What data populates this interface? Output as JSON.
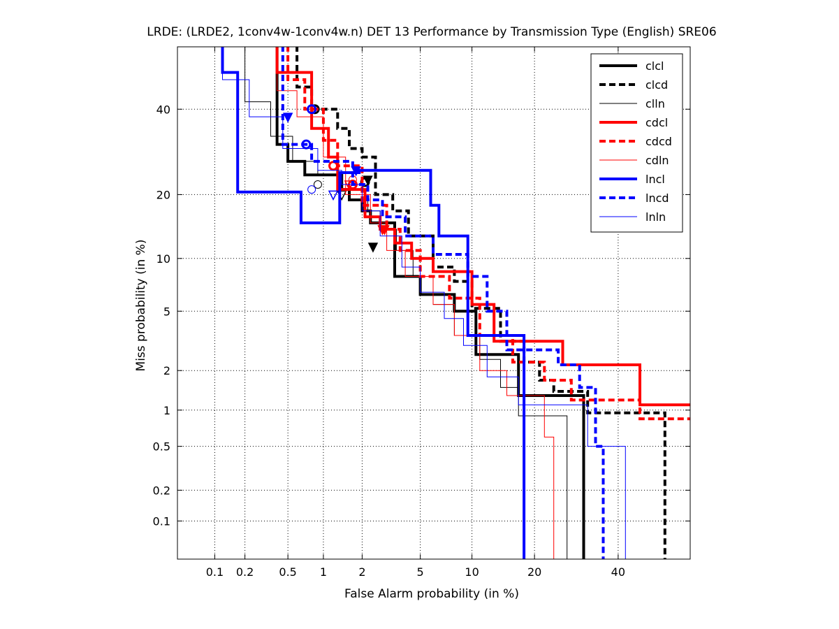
{
  "chart_data": {
    "type": "line",
    "title": "LRDE: (LRDE2, 1conv4w-1conv4w.n) DET 13 Performance by Transmission Type (English) SRE06",
    "xlabel": "False Alarm probability (in %)",
    "ylabel": "Miss probability (in %)",
    "x_scale": "normal-deviate",
    "y_scale": "normal-deviate",
    "xlim": [
      0.04,
      60
    ],
    "ylim": [
      0.04,
      57
    ],
    "grid": true,
    "legend_position": "top-right",
    "x_ticks": [
      {
        "value": 0.1,
        "label": "0.1"
      },
      {
        "value": 0.2,
        "label": "0.2"
      },
      {
        "value": 0.5,
        "label": "0.5"
      },
      {
        "value": 1,
        "label": "1"
      },
      {
        "value": 2,
        "label": "2"
      },
      {
        "value": 5,
        "label": "5"
      },
      {
        "value": 10,
        "label": "10"
      },
      {
        "value": 20,
        "label": "20"
      },
      {
        "value": 40,
        "label": "40"
      }
    ],
    "y_ticks": [
      {
        "value": 0.1,
        "label": "0.1"
      },
      {
        "value": 0.2,
        "label": "0.2"
      },
      {
        "value": 0.5,
        "label": "0.5"
      },
      {
        "value": 1,
        "label": "1"
      },
      {
        "value": 2,
        "label": "2"
      },
      {
        "value": 5,
        "label": "5"
      },
      {
        "value": 10,
        "label": "10"
      },
      {
        "value": 20,
        "label": "20"
      },
      {
        "value": 40,
        "label": "40"
      }
    ],
    "series": [
      {
        "name": "clcl",
        "color": "#000000",
        "style": "solid",
        "weight": "thick",
        "points": [
          [
            0.4,
            60
          ],
          [
            0.4,
            31
          ],
          [
            0.5,
            31
          ],
          [
            0.5,
            27
          ],
          [
            0.7,
            27
          ],
          [
            0.7,
            24
          ],
          [
            1.4,
            24
          ],
          [
            1.4,
            21
          ],
          [
            1.6,
            21
          ],
          [
            1.6,
            19
          ],
          [
            2.0,
            19
          ],
          [
            2.0,
            17
          ],
          [
            2.3,
            17
          ],
          [
            2.3,
            15
          ],
          [
            3.4,
            15
          ],
          [
            3.4,
            8
          ],
          [
            5.0,
            8
          ],
          [
            5.0,
            6.3
          ],
          [
            8.0,
            6.3
          ],
          [
            8.0,
            5.0
          ],
          [
            10.5,
            5.0
          ],
          [
            10.5,
            2.6
          ],
          [
            17,
            2.6
          ],
          [
            17,
            1.3
          ],
          [
            31,
            1.3
          ],
          [
            31,
            0.04
          ]
        ],
        "dcf_marker": {
          "x": 2.1,
          "y": 22.5,
          "label_shape": "circle"
        },
        "min_marker": {
          "x": 2.4,
          "y": 11.5,
          "label_shape": "triangle"
        }
      },
      {
        "name": "clcd",
        "color": "#000000",
        "style": "dashed",
        "weight": "thick",
        "points": [
          [
            0.6,
            60
          ],
          [
            0.6,
            46
          ],
          [
            0.8,
            46
          ],
          [
            0.8,
            40
          ],
          [
            1.3,
            40
          ],
          [
            1.3,
            35
          ],
          [
            1.6,
            35
          ],
          [
            1.6,
            30
          ],
          [
            2.0,
            30
          ],
          [
            2.0,
            28
          ],
          [
            2.5,
            28
          ],
          [
            2.5,
            20
          ],
          [
            3.3,
            20
          ],
          [
            3.3,
            17
          ],
          [
            4.2,
            17
          ],
          [
            4.2,
            13
          ],
          [
            6.0,
            13
          ],
          [
            6.0,
            9
          ],
          [
            8.0,
            9
          ],
          [
            8.0,
            7.5
          ],
          [
            10,
            7.5
          ],
          [
            10,
            5.2
          ],
          [
            14,
            5.2
          ],
          [
            14,
            3.2
          ],
          [
            18,
            3.2
          ],
          [
            18,
            2.3
          ],
          [
            21,
            2.3
          ],
          [
            21,
            1.7
          ],
          [
            24,
            1.7
          ],
          [
            24,
            1.4
          ],
          [
            32,
            1.4
          ],
          [
            32,
            0.95
          ],
          [
            53,
            0.95
          ],
          [
            53,
            0.04
          ]
        ],
        "dcf_marker": {
          "x": 0.85,
          "y": 40,
          "label_shape": "circle"
        },
        "min_marker": {
          "x": 2.2,
          "y": 23,
          "label_shape": "triangle"
        }
      },
      {
        "name": "clln",
        "color": "#000000",
        "style": "solid",
        "weight": "thin",
        "points": [
          [
            0.2,
            60
          ],
          [
            0.2,
            42
          ],
          [
            0.35,
            42
          ],
          [
            0.35,
            33
          ],
          [
            0.55,
            33
          ],
          [
            0.55,
            27
          ],
          [
            0.9,
            27
          ],
          [
            0.9,
            24
          ],
          [
            1.3,
            24
          ],
          [
            1.3,
            21
          ],
          [
            1.6,
            21
          ],
          [
            1.6,
            19
          ],
          [
            2.2,
            19
          ],
          [
            2.2,
            17
          ],
          [
            2.7,
            17
          ],
          [
            2.7,
            14
          ],
          [
            3.5,
            14
          ],
          [
            3.5,
            11
          ],
          [
            4.5,
            11
          ],
          [
            4.5,
            8
          ],
          [
            6.0,
            8
          ],
          [
            6.0,
            5.5
          ],
          [
            8.0,
            5.5
          ],
          [
            8.0,
            3.5
          ],
          [
            11,
            3.5
          ],
          [
            11,
            2.4
          ],
          [
            14,
            2.4
          ],
          [
            14,
            1.5
          ],
          [
            17,
            1.5
          ],
          [
            17,
            0.9
          ],
          [
            27,
            0.9
          ],
          [
            27,
            0.04
          ]
        ],
        "dcf_marker": {
          "x": 0.9,
          "y": 22,
          "label_shape": "circle"
        },
        "min_marker": {
          "x": 1.4,
          "y": 20,
          "label_shape": "triangle"
        }
      },
      {
        "name": "cdcl",
        "color": "#ff0000",
        "style": "solid",
        "weight": "thick",
        "points": [
          [
            0.4,
            60
          ],
          [
            0.4,
            50
          ],
          [
            0.8,
            50
          ],
          [
            0.8,
            35
          ],
          [
            1.1,
            35
          ],
          [
            1.1,
            28
          ],
          [
            1.3,
            28
          ],
          [
            1.3,
            21
          ],
          [
            2.1,
            21
          ],
          [
            2.1,
            16
          ],
          [
            2.7,
            16
          ],
          [
            2.7,
            14
          ],
          [
            3.4,
            14
          ],
          [
            3.4,
            12
          ],
          [
            4.4,
            12
          ],
          [
            4.4,
            10
          ],
          [
            6.0,
            10
          ],
          [
            6.0,
            8.5
          ],
          [
            10,
            8.5
          ],
          [
            10,
            5.5
          ],
          [
            13,
            5.5
          ],
          [
            13,
            3.2
          ],
          [
            26,
            3.2
          ],
          [
            26,
            2.2
          ],
          [
            46,
            2.2
          ],
          [
            46,
            1.1
          ],
          [
            60,
            1.1
          ]
        ],
        "dcf_marker": {
          "x": 1.7,
          "y": 22,
          "label_shape": "circle"
        },
        "min_marker": {
          "x": 2.9,
          "y": 14,
          "label_shape": "triangle"
        }
      },
      {
        "name": "cdcd",
        "color": "#ff0000",
        "style": "dashed",
        "weight": "thick",
        "points": [
          [
            0.5,
            60
          ],
          [
            0.5,
            48
          ],
          [
            0.7,
            48
          ],
          [
            0.7,
            40
          ],
          [
            1.0,
            40
          ],
          [
            1.0,
            32
          ],
          [
            1.3,
            32
          ],
          [
            1.3,
            26
          ],
          [
            2.0,
            26
          ],
          [
            2.0,
            18
          ],
          [
            3.0,
            18
          ],
          [
            3.0,
            14
          ],
          [
            3.7,
            14
          ],
          [
            3.7,
            11
          ],
          [
            5.0,
            11
          ],
          [
            5.0,
            8
          ],
          [
            7.5,
            8
          ],
          [
            7.5,
            6
          ],
          [
            11,
            6
          ],
          [
            11,
            3.5
          ],
          [
            16,
            3.5
          ],
          [
            16,
            2.3
          ],
          [
            22,
            2.3
          ],
          [
            22,
            1.7
          ],
          [
            28,
            1.7
          ],
          [
            28,
            1.2
          ],
          [
            46,
            1.2
          ],
          [
            46,
            0.85
          ],
          [
            60,
            0.85
          ]
        ],
        "dcf_marker": {
          "x": 1.2,
          "y": 26,
          "label_shape": "circle"
        },
        "min_marker": {
          "x": 2.8,
          "y": 14,
          "label_shape": "triangle"
        }
      },
      {
        "name": "cdln",
        "color": "#ff0000",
        "style": "solid",
        "weight": "thin",
        "points": [
          [
            0.4,
            60
          ],
          [
            0.4,
            45
          ],
          [
            0.6,
            45
          ],
          [
            0.6,
            38
          ],
          [
            1.0,
            38
          ],
          [
            1.0,
            28
          ],
          [
            1.5,
            28
          ],
          [
            1.5,
            20
          ],
          [
            2.3,
            20
          ],
          [
            2.3,
            15
          ],
          [
            3.0,
            15
          ],
          [
            3.0,
            11
          ],
          [
            4.0,
            11
          ],
          [
            4.0,
            8
          ],
          [
            6.0,
            8
          ],
          [
            6.0,
            5.5
          ],
          [
            8.0,
            5.5
          ],
          [
            8.0,
            3.5
          ],
          [
            11,
            3.5
          ],
          [
            11,
            2.0
          ],
          [
            15,
            2.0
          ],
          [
            15,
            1.3
          ],
          [
            22,
            1.3
          ],
          [
            22,
            0.6
          ],
          [
            24,
            0.6
          ],
          [
            24,
            0.04
          ]
        ],
        "dcf_marker": {
          "x": 1.7,
          "y": 23,
          "label_shape": "circle"
        },
        "min_marker": {
          "x": 1.6,
          "y": 22,
          "label_shape": "triangle"
        }
      },
      {
        "name": "lncl",
        "color": "#0000ff",
        "style": "solid",
        "weight": "thick",
        "points": [
          [
            0.12,
            60
          ],
          [
            0.12,
            50
          ],
          [
            0.17,
            50
          ],
          [
            0.17,
            20.5
          ],
          [
            0.65,
            20.5
          ],
          [
            0.65,
            15
          ],
          [
            1.35,
            15
          ],
          [
            1.35,
            24.5
          ],
          [
            1.9,
            24.5
          ],
          [
            1.9,
            25
          ],
          [
            5.8,
            25
          ],
          [
            5.8,
            18
          ],
          [
            6.5,
            18
          ],
          [
            6.5,
            13
          ],
          [
            9.5,
            13
          ],
          [
            9.5,
            3.5
          ],
          [
            18,
            3.5
          ],
          [
            18,
            0.04
          ]
        ],
        "dcf_marker": {
          "x": 0.72,
          "y": 31,
          "label_shape": "circle"
        },
        "min_marker": {
          "x": 0.5,
          "y": 38,
          "label_shape": "triangle"
        }
      },
      {
        "name": "lncd",
        "color": "#0000ff",
        "style": "dashed",
        "weight": "thick",
        "points": [
          [
            0.45,
            60
          ],
          [
            0.45,
            31
          ],
          [
            0.8,
            31
          ],
          [
            0.8,
            27
          ],
          [
            1.7,
            27
          ],
          [
            1.7,
            22
          ],
          [
            2.2,
            22
          ],
          [
            2.2,
            19
          ],
          [
            2.8,
            19
          ],
          [
            2.8,
            16
          ],
          [
            4.0,
            16
          ],
          [
            4.0,
            13
          ],
          [
            6.0,
            13
          ],
          [
            6.0,
            10.5
          ],
          [
            9.5,
            10.5
          ],
          [
            9.5,
            8
          ],
          [
            12,
            8
          ],
          [
            12,
            5
          ],
          [
            15,
            5
          ],
          [
            15,
            2.8
          ],
          [
            25,
            2.8
          ],
          [
            25,
            2.2
          ],
          [
            30,
            2.2
          ],
          [
            30,
            1.5
          ],
          [
            34,
            1.5
          ],
          [
            34,
            0.5
          ],
          [
            36,
            0.5
          ],
          [
            36,
            0.04
          ]
        ],
        "dcf_marker": {
          "x": 0.8,
          "y": 40,
          "label_shape": "circle"
        },
        "min_marker": {
          "x": 1.8,
          "y": 25,
          "label_shape": "triangle"
        }
      },
      {
        "name": "lnln",
        "color": "#0000ff",
        "style": "solid",
        "weight": "thin",
        "points": [
          [
            0.12,
            60
          ],
          [
            0.12,
            48
          ],
          [
            0.22,
            48
          ],
          [
            0.22,
            38
          ],
          [
            0.45,
            38
          ],
          [
            0.45,
            30
          ],
          [
            0.9,
            30
          ],
          [
            0.9,
            25
          ],
          [
            1.4,
            25
          ],
          [
            1.4,
            22
          ],
          [
            2.0,
            22
          ],
          [
            2.0,
            17
          ],
          [
            2.7,
            17
          ],
          [
            2.7,
            13
          ],
          [
            3.8,
            13
          ],
          [
            3.8,
            9
          ],
          [
            5.0,
            9
          ],
          [
            5.0,
            6.5
          ],
          [
            7.0,
            6.5
          ],
          [
            7.0,
            4.5
          ],
          [
            9.0,
            4.5
          ],
          [
            9.0,
            3
          ],
          [
            12,
            3
          ],
          [
            12,
            1.8
          ],
          [
            17,
            1.8
          ],
          [
            17,
            1.1
          ],
          [
            32,
            1.1
          ],
          [
            32,
            0.5
          ],
          [
            42,
            0.5
          ],
          [
            42,
            0.04
          ]
        ],
        "dcf_marker": {
          "x": 0.8,
          "y": 21,
          "label_shape": "circle"
        },
        "min_marker": {
          "x": 1.2,
          "y": 20,
          "label_shape": "triangle"
        }
      }
    ]
  }
}
